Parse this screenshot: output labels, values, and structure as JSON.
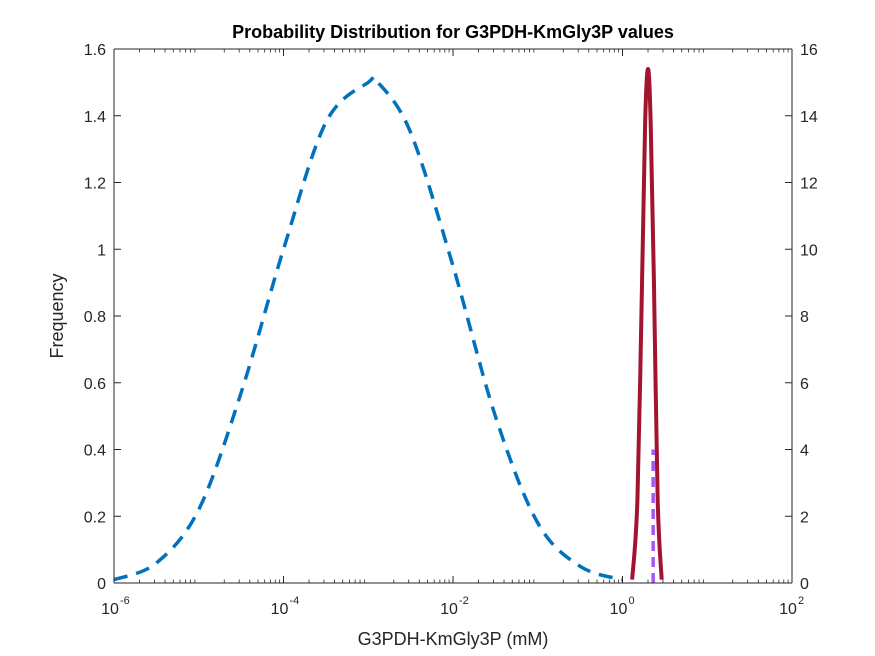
{
  "chart_data": {
    "type": "line",
    "title": "Probability Distribution for G3PDH-KmGly3P values",
    "xlabel": "G3PDH-KmGly3P (mM)",
    "ylabel": "Frequency",
    "ylabel_right": "",
    "x_scale": "log",
    "xlim": [
      1e-06,
      100
    ],
    "ylim_left": [
      0,
      1.6
    ],
    "ylim_right": [
      0,
      16
    ],
    "grid": false,
    "legend": "none",
    "x_ticks": [
      {
        "base": "10",
        "exp": "-6"
      },
      {
        "base": "10",
        "exp": "-4"
      },
      {
        "base": "10",
        "exp": "-2"
      },
      {
        "base": "10",
        "exp": "0"
      },
      {
        "base": "10",
        "exp": "2"
      }
    ],
    "y_ticks_left": [
      "0",
      "0.2",
      "0.4",
      "0.6",
      "0.8",
      "1",
      "1.2",
      "1.4",
      "1.6"
    ],
    "y_ticks_right": [
      "0",
      "2",
      "4",
      "6",
      "8",
      "10",
      "12",
      "14",
      "16"
    ],
    "series": [
      {
        "axis": "left",
        "style": "dashed",
        "color": "#0072bd",
        "x": [
          1e-06,
          3.16e-06,
          1e-05,
          3.16e-05,
          0.0001,
          0.000316,
          0.001,
          0.0013,
          0.00316,
          0.01,
          0.0316,
          0.1,
          0.316,
          1
        ],
        "y": [
          0.01,
          0.06,
          0.22,
          0.57,
          1.0,
          1.38,
          1.5,
          1.5,
          1.35,
          0.95,
          0.5,
          0.18,
          0.05,
          0.01
        ]
      },
      {
        "axis": "right",
        "style": "solid",
        "color": "#a2142f",
        "x": [
          1.3,
          1.5,
          1.7,
          1.85,
          2.0,
          2.15,
          2.35,
          2.6,
          2.9
        ],
        "y": [
          0.1,
          2.5,
          9.0,
          13.8,
          15.4,
          13.8,
          9.0,
          2.5,
          0.1
        ]
      },
      {
        "axis": "right",
        "style": "dashed",
        "color": "#a855f7",
        "x": [
          2.3,
          2.3
        ],
        "y": [
          0,
          4
        ]
      }
    ]
  }
}
